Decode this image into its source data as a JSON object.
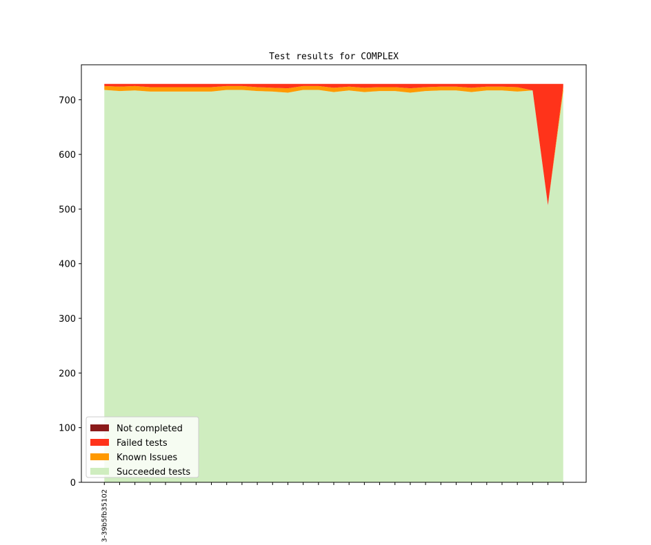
{
  "chart_data": {
    "type": "stacked_area",
    "title": "Test results for COMPLEX",
    "categories": [
      "3-39b5fb35102",
      null,
      null,
      null,
      null,
      null,
      null,
      null,
      null,
      null,
      null,
      null,
      null,
      null,
      null,
      null,
      null,
      null,
      null,
      null,
      null,
      null,
      null,
      null,
      null,
      null,
      null,
      null,
      null,
      null,
      null
    ],
    "series": [
      {
        "name": "Succeeded tests",
        "color": "#cfedbf",
        "values": [
          718,
          716,
          717,
          715,
          715,
          715,
          715,
          715,
          718,
          718,
          716,
          715,
          713,
          718,
          718,
          714,
          717,
          714,
          716,
          716,
          713,
          716,
          717,
          717,
          714,
          717,
          717,
          715,
          717,
          507,
          716
        ]
      },
      {
        "name": "Known Issues",
        "color": "#ff9900",
        "values": [
          7,
          8,
          8,
          8,
          8,
          8,
          8,
          8,
          7,
          7,
          7,
          7,
          8,
          7,
          7,
          8,
          7,
          8,
          7,
          7,
          8,
          7,
          7,
          7,
          8,
          7,
          7,
          8,
          0,
          0,
          8
        ]
      },
      {
        "name": "Failed tests",
        "color": "#ff331a",
        "values": [
          4,
          5,
          4,
          6,
          6,
          6,
          6,
          6,
          4,
          4,
          6,
          7,
          8,
          4,
          4,
          7,
          5,
          7,
          6,
          6,
          8,
          6,
          5,
          5,
          7,
          5,
          5,
          6,
          12,
          222,
          5
        ]
      },
      {
        "name": "Not completed",
        "color": "#8b1a1a",
        "values": [
          0,
          0,
          0,
          0,
          0,
          0,
          0,
          0,
          0,
          0,
          0,
          0,
          0,
          0,
          0,
          0,
          0,
          0,
          0,
          0,
          0,
          0,
          0,
          0,
          0,
          0,
          0,
          0,
          0,
          0,
          0
        ]
      }
    ],
    "ylim": [
      0,
      764
    ],
    "yticks": [
      0,
      100,
      200,
      300,
      400,
      500,
      600,
      700
    ],
    "legend": "lower left"
  }
}
